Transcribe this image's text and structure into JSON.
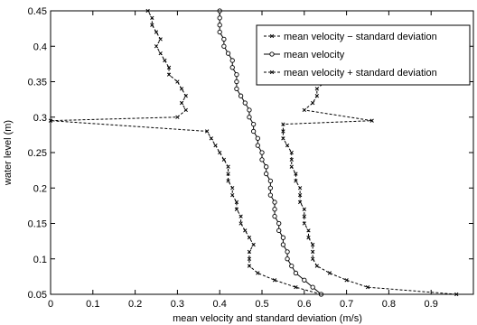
{
  "chart_data": {
    "type": "line",
    "xlabel": "mean velocity and standard deviation (m/s)",
    "ylabel": "water level (m)",
    "xlim": [
      0,
      1.0
    ],
    "ylim": [
      0.05,
      0.45
    ],
    "xticks": [
      "0",
      "0.1",
      "0.2",
      "0.3",
      "0.4",
      "0.5",
      "0.6",
      "0.7",
      "0.8",
      "0.9"
    ],
    "yticks": [
      "0.05",
      "0.1",
      "0.15",
      "0.2",
      "0.25",
      "0.3",
      "0.35",
      "0.4",
      "0.45"
    ],
    "legend_position": "top-right",
    "grid": false,
    "series": [
      {
        "name": "mean velocity − standard deviation",
        "marker": "x",
        "line": "dashed",
        "color": "#000000",
        "x": [
          0.64,
          0.58,
          0.53,
          0.49,
          0.47,
          0.47,
          0.47,
          0.48,
          0.47,
          0.46,
          0.45,
          0.45,
          0.44,
          0.44,
          0.43,
          0.43,
          0.42,
          0.42,
          0.42,
          0.41,
          0.4,
          0.39,
          0.38,
          0.37,
          0.0,
          0.3,
          0.32,
          0.31,
          0.32,
          0.31,
          0.3,
          0.28,
          0.28,
          0.27,
          0.26,
          0.25,
          0.26,
          0.25,
          0.24,
          0.24,
          0.23
        ],
        "y": [
          0.05,
          0.06,
          0.07,
          0.08,
          0.09,
          0.1,
          0.11,
          0.12,
          0.13,
          0.14,
          0.15,
          0.16,
          0.17,
          0.18,
          0.19,
          0.2,
          0.21,
          0.22,
          0.23,
          0.24,
          0.25,
          0.26,
          0.27,
          0.28,
          0.295,
          0.3,
          0.31,
          0.32,
          0.33,
          0.34,
          0.35,
          0.36,
          0.37,
          0.38,
          0.39,
          0.4,
          0.41,
          0.42,
          0.43,
          0.44,
          0.45
        ]
      },
      {
        "name": "mean velocity",
        "marker": "o",
        "line": "solid",
        "color": "#000000",
        "x": [
          0.64,
          0.62,
          0.6,
          0.58,
          0.57,
          0.56,
          0.56,
          0.55,
          0.55,
          0.54,
          0.54,
          0.53,
          0.53,
          0.53,
          0.52,
          0.52,
          0.52,
          0.51,
          0.51,
          0.5,
          0.5,
          0.49,
          0.49,
          0.48,
          0.48,
          0.47,
          0.47,
          0.46,
          0.45,
          0.44,
          0.44,
          0.44,
          0.43,
          0.43,
          0.42,
          0.41,
          0.41,
          0.4,
          0.4,
          0.4,
          0.4
        ],
        "y": [
          0.05,
          0.06,
          0.07,
          0.08,
          0.09,
          0.1,
          0.11,
          0.12,
          0.13,
          0.14,
          0.15,
          0.16,
          0.17,
          0.18,
          0.19,
          0.2,
          0.21,
          0.22,
          0.23,
          0.24,
          0.25,
          0.26,
          0.27,
          0.28,
          0.29,
          0.3,
          0.31,
          0.32,
          0.33,
          0.34,
          0.35,
          0.36,
          0.37,
          0.38,
          0.39,
          0.4,
          0.41,
          0.42,
          0.43,
          0.44,
          0.45
        ]
      },
      {
        "name": "mean velocity + standard deviation",
        "marker": "x",
        "line": "dashed",
        "color": "#000000",
        "x": [
          0.96,
          0.75,
          0.7,
          0.66,
          0.63,
          0.62,
          0.62,
          0.62,
          0.61,
          0.61,
          0.6,
          0.6,
          0.6,
          0.59,
          0.59,
          0.59,
          0.58,
          0.58,
          0.57,
          0.57,
          0.57,
          0.56,
          0.55,
          0.55,
          0.55,
          0.76,
          0.6,
          0.62,
          0.63,
          0.63,
          0.65,
          0.66,
          0.64,
          0.63
        ],
        "y": [
          0.05,
          0.06,
          0.07,
          0.08,
          0.09,
          0.1,
          0.11,
          0.12,
          0.13,
          0.14,
          0.15,
          0.16,
          0.17,
          0.18,
          0.19,
          0.2,
          0.21,
          0.22,
          0.23,
          0.24,
          0.25,
          0.26,
          0.27,
          0.28,
          0.29,
          0.295,
          0.31,
          0.32,
          0.33,
          0.34,
          0.35,
          0.36,
          0.37,
          0.38
        ]
      }
    ]
  }
}
